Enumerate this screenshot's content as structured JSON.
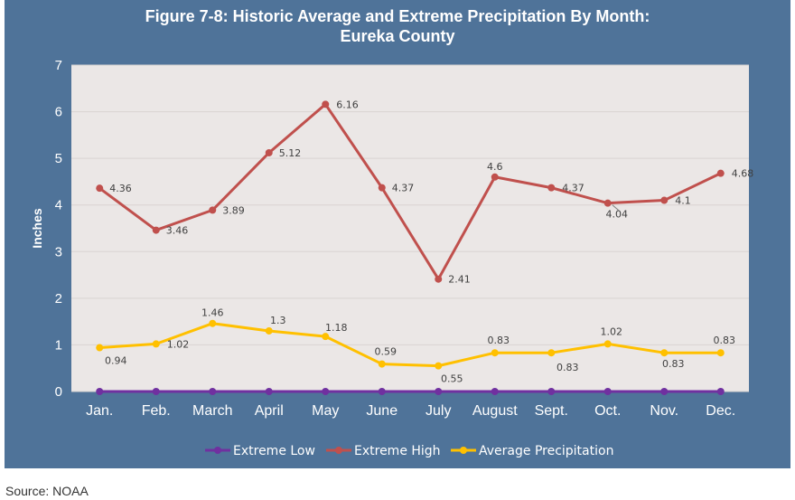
{
  "chart_data": {
    "type": "line",
    "title_line1": "Figure 7-8: Historic Average and Extreme Precipitation By Month:",
    "title_line2": "Eureka County",
    "ylabel": "Inches",
    "xlabel": "",
    "ylim": [
      0,
      7
    ],
    "yticks": [
      0,
      1,
      2,
      3,
      4,
      5,
      6,
      7
    ],
    "grid": true,
    "legend_position": "bottom",
    "categories": [
      "Jan.",
      "Feb.",
      "March",
      "April",
      "May",
      "June",
      "July",
      "August",
      "Sept.",
      "Oct.",
      "Nov.",
      "Dec."
    ],
    "series": [
      {
        "name": "Extreme Low",
        "color": "#7030a0",
        "values": [
          0,
          0,
          0,
          0,
          0,
          0,
          0,
          0,
          0,
          0,
          0,
          0
        ],
        "labels": false
      },
      {
        "name": "Extreme High",
        "color": "#c0504d",
        "values": [
          4.36,
          3.46,
          3.89,
          5.12,
          6.16,
          4.37,
          2.41,
          4.6,
          4.37,
          4.04,
          4.1,
          4.68
        ],
        "labels": true
      },
      {
        "name": "Average Precipitation",
        "color": "#ffc000",
        "values": [
          0.94,
          1.02,
          1.46,
          1.3,
          1.18,
          0.59,
          0.55,
          0.83,
          0.83,
          1.02,
          0.83,
          0.83
        ],
        "labels": true
      }
    ]
  },
  "colors": {
    "frame_background": "#4f7399",
    "plot_background": "#ebe7e6",
    "gridline": "#d9d4d2"
  },
  "source_text": "Source: NOAA"
}
